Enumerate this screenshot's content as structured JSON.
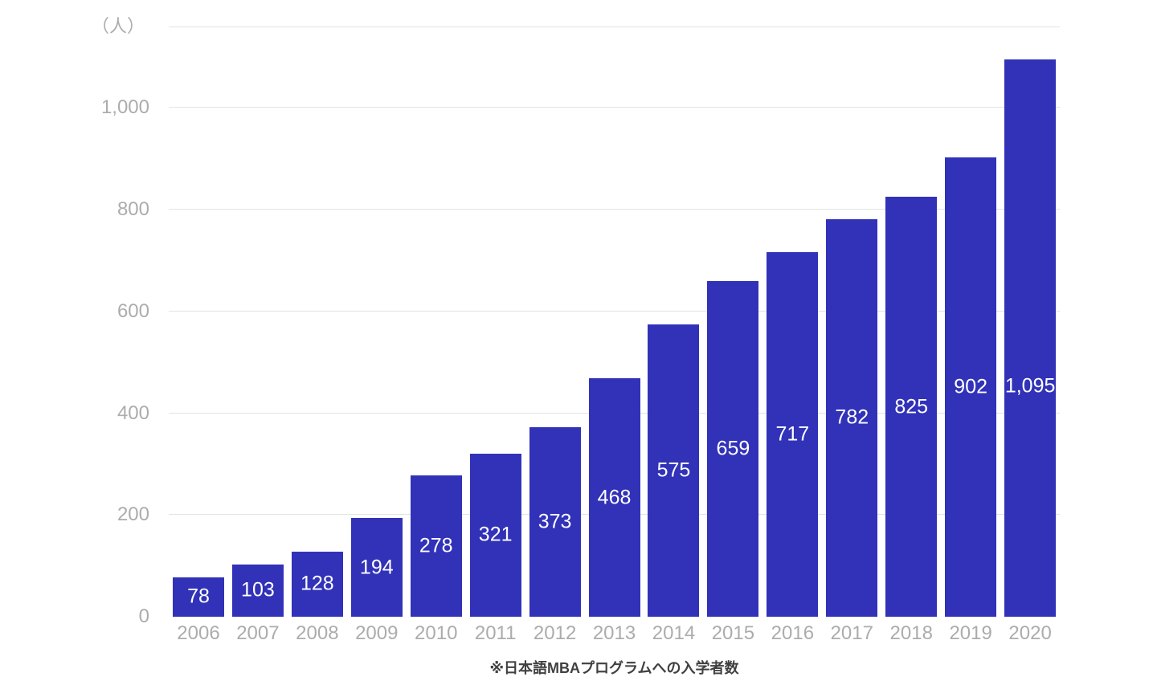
{
  "chart_data": {
    "type": "bar",
    "categories": [
      "2006",
      "2007",
      "2008",
      "2009",
      "2010",
      "2011",
      "2012",
      "2013",
      "2014",
      "2015",
      "2016",
      "2017",
      "2018",
      "2019",
      "2020"
    ],
    "values": [
      78,
      103,
      128,
      194,
      278,
      321,
      373,
      468,
      575,
      659,
      717,
      782,
      825,
      902,
      1095
    ],
    "value_labels": [
      "78",
      "103",
      "128",
      "194",
      "278",
      "321",
      "373",
      "468",
      "575",
      "659",
      "717",
      "782",
      "825",
      "902",
      "1,095"
    ],
    "title": "",
    "xlabel": "",
    "ylabel": "",
    "unit_label": "（人）",
    "annotation": "※日本語MBAプログラムへの入学者数",
    "y_ticks": [
      {
        "value": 0,
        "label": "0"
      },
      {
        "value": 200,
        "label": "200"
      },
      {
        "value": 400,
        "label": "400"
      },
      {
        "value": 600,
        "label": "600"
      },
      {
        "value": 800,
        "label": "800"
      },
      {
        "value": 1000,
        "label": "1,000"
      }
    ],
    "ylim": [
      0,
      1160
    ],
    "grid": true,
    "legend": false,
    "colors": {
      "bar": "#3132b8",
      "grid": "#e3e3e3",
      "tick": "#acacac",
      "value_label": "#ffffff",
      "caption": "#404040",
      "background": "#ffffff"
    }
  }
}
